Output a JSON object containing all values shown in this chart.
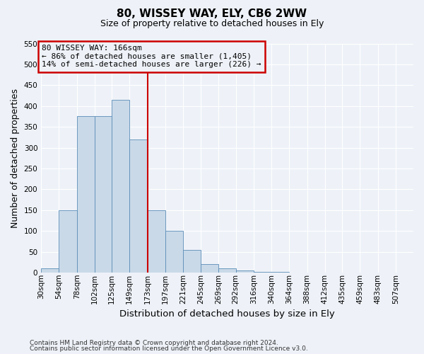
{
  "title": "80, WISSEY WAY, ELY, CB6 2WW",
  "subtitle": "Size of property relative to detached houses in Ely",
  "xlabel": "Distribution of detached houses by size in Ely",
  "ylabel": "Number of detached properties",
  "footnote1": "Contains HM Land Registry data © Crown copyright and database right 2024.",
  "footnote2": "Contains public sector information licensed under the Open Government Licence v3.0.",
  "annotation_line1": "80 WISSEY WAY: 166sqm",
  "annotation_line2": "← 86% of detached houses are smaller (1,405)",
  "annotation_line3": "14% of semi-detached houses are larger (226) →",
  "bar_color": "#c9d9e8",
  "bar_edge_color": "#5b8db8",
  "vline_color": "#cc0000",
  "annotation_box_color": "#cc0000",
  "categories": [
    "30sqm",
    "54sqm",
    "78sqm",
    "102sqm",
    "125sqm",
    "149sqm",
    "173sqm",
    "197sqm",
    "221sqm",
    "245sqm",
    "269sqm",
    "292sqm",
    "316sqm",
    "340sqm",
    "364sqm",
    "388sqm",
    "412sqm",
    "435sqm",
    "459sqm",
    "483sqm",
    "507sqm"
  ],
  "bin_edges": [
    30,
    54,
    78,
    102,
    125,
    149,
    173,
    197,
    221,
    245,
    269,
    292,
    316,
    340,
    364,
    388,
    412,
    435,
    459,
    483,
    507,
    531
  ],
  "values": [
    10,
    150,
    375,
    375,
    415,
    320,
    150,
    100,
    55,
    20,
    10,
    5,
    2,
    2,
    1,
    1,
    0,
    1,
    0,
    1,
    1
  ],
  "vline_x_index": 6,
  "ylim": [
    0,
    550
  ],
  "yticks": [
    0,
    50,
    100,
    150,
    200,
    250,
    300,
    350,
    400,
    450,
    500,
    550
  ],
  "background_color": "#eef2f8",
  "grid_color": "#ffffff",
  "title_fontsize": 11,
  "subtitle_fontsize": 9,
  "axis_label_fontsize": 9,
  "tick_fontsize": 7.5,
  "footnote_fontsize": 6.5,
  "annotation_fontsize": 8
}
